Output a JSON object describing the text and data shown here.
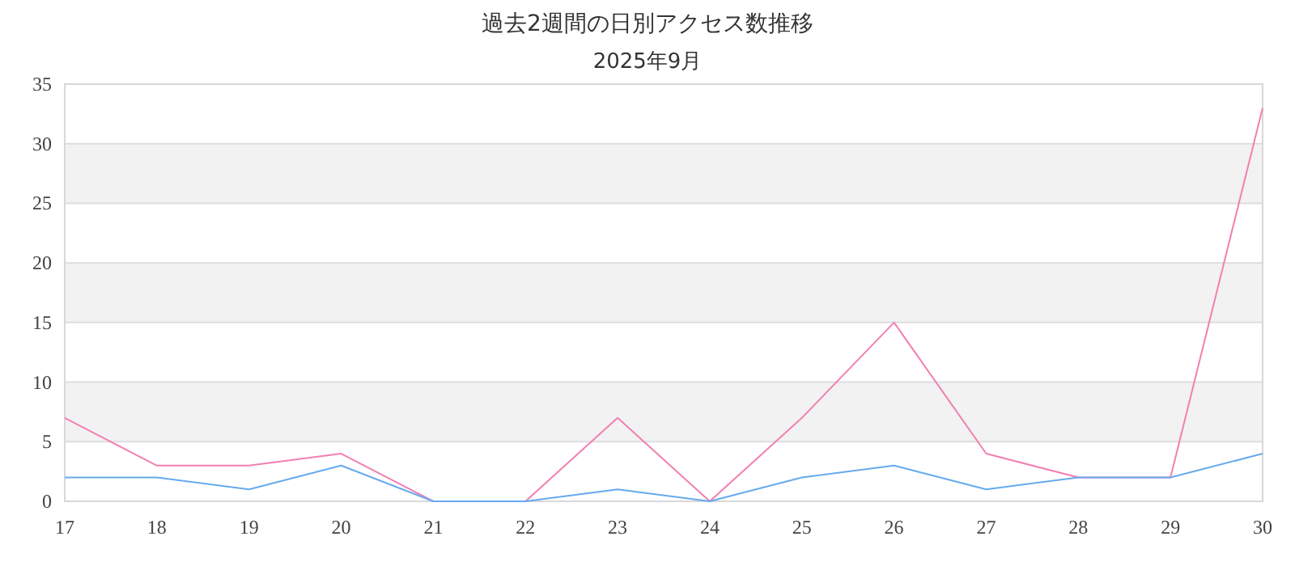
{
  "chart_data": {
    "type": "line",
    "title": "過去2週間の日別アクセス数推移",
    "subtitle": "2025年9月",
    "categories": [
      "17",
      "18",
      "19",
      "20",
      "21",
      "22",
      "23",
      "24",
      "25",
      "26",
      "27",
      "28",
      "29",
      "30"
    ],
    "series": [
      {
        "color": "#f27fb2",
        "values": [
          7,
          3,
          3,
          4,
          0,
          0,
          7,
          0,
          7,
          15,
          4,
          2,
          2,
          33
        ]
      },
      {
        "color": "#66aaee",
        "values": [
          2,
          2,
          1,
          3,
          0,
          0,
          1,
          0,
          2,
          3,
          1,
          2,
          2,
          4
        ]
      }
    ],
    "ylim": [
      0,
      35
    ],
    "yticks": [
      0,
      5,
      10,
      15,
      20,
      25,
      30,
      35
    ],
    "grid": "y",
    "marker": "none",
    "line_style": "solid"
  }
}
